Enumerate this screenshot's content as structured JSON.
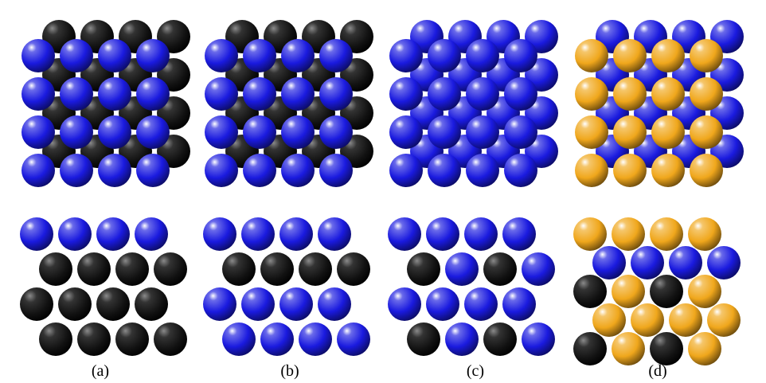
{
  "colors": {
    "blue": "#1a1adf",
    "black": "#111111",
    "gold": "#f0a71c",
    "background": "#ffffff"
  },
  "panels": [
    {
      "id": "a",
      "label": "(a)",
      "top_view": {
        "back": "black",
        "front": "blue"
      },
      "side_view": {
        "rows": [
          [
            "blue",
            "blue",
            "blue",
            "blue"
          ],
          [
            "black",
            "black",
            "black",
            "black"
          ],
          [
            "black",
            "black",
            "black",
            "black"
          ],
          [
            "black",
            "black",
            "black",
            "black"
          ]
        ]
      }
    },
    {
      "id": "b",
      "label": "(b)",
      "top_view": {
        "back": "black",
        "front": "blue"
      },
      "side_view": {
        "rows": [
          [
            "blue",
            "blue",
            "blue",
            "blue"
          ],
          [
            "black",
            "black",
            "black",
            "black"
          ],
          [
            "blue",
            "blue",
            "blue",
            "blue"
          ],
          [
            "blue",
            "blue",
            "blue",
            "blue"
          ]
        ]
      }
    },
    {
      "id": "c",
      "label": "(c)",
      "top_view": {
        "back": "blue",
        "front": "blue"
      },
      "side_view": {
        "rows": [
          [
            "blue",
            "blue",
            "blue",
            "blue"
          ],
          [
            "black",
            "blue",
            "black",
            "blue"
          ],
          [
            "blue",
            "blue",
            "blue",
            "blue"
          ],
          [
            "black",
            "blue",
            "black",
            "blue"
          ]
        ]
      }
    },
    {
      "id": "d",
      "label": "(d)",
      "top_view": {
        "back": "blue",
        "front": "gold"
      },
      "side_view": {
        "rows": [
          [
            "gold",
            "gold",
            "gold",
            "gold"
          ],
          [
            "blue",
            "blue",
            "blue",
            "blue"
          ],
          [
            "black",
            "gold",
            "black",
            "gold"
          ],
          [
            "gold",
            "gold",
            "gold",
            "gold"
          ],
          [
            "black",
            "gold",
            "black",
            "gold"
          ]
        ]
      }
    }
  ]
}
